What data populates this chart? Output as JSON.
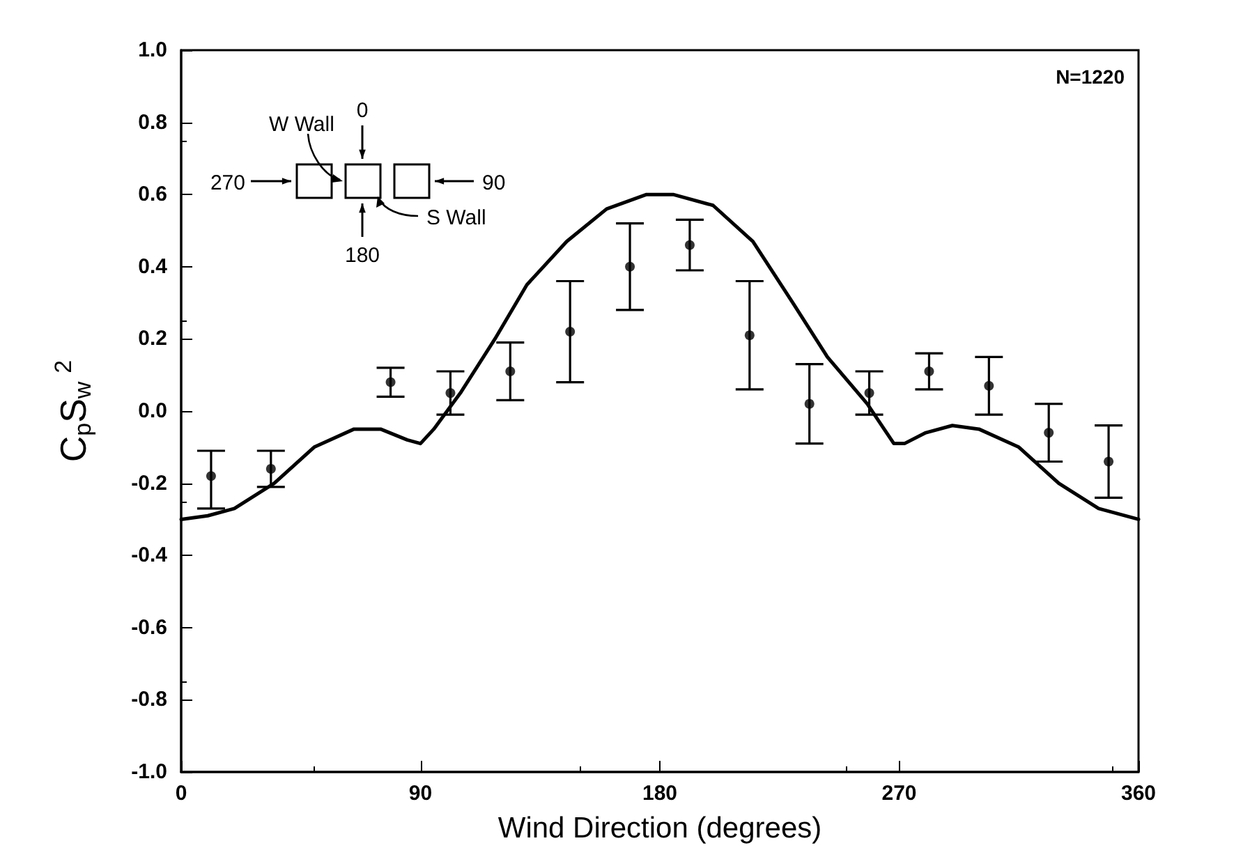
{
  "chart_data": {
    "type": "scatter",
    "xlabel": "Wind Direction (degrees)",
    "ylabel": "C$_{p}$S$_{w}$$^{2}$",
    "xlim": [
      0,
      360
    ],
    "xticks": [
      0,
      90,
      180,
      270,
      360
    ],
    "ylim": [
      -1.0,
      1.0
    ],
    "yticks": [
      {
        "value": -1.0,
        "label": "-1.0"
      },
      {
        "value": -0.8,
        "label": "-0.8"
      },
      {
        "value": -0.6,
        "label": "-0.6"
      },
      {
        "value": -0.4,
        "label": "-0.4"
      },
      {
        "value": -0.2,
        "label": "-0.2"
      },
      {
        "value": 0,
        "label": "0.0"
      },
      {
        "value": 0.2,
        "label": "0.2"
      },
      {
        "value": 0.4,
        "label": "0.4"
      },
      {
        "value": 0.6,
        "label": "0.6"
      },
      {
        "value": 0.8,
        "label": "0.8"
      },
      {
        "value": 1.0,
        "label": "1.0"
      }
    ],
    "grid": false,
    "annotations": [
      "N=1220",
      "W Wall",
      "0",
      "270",
      "90",
      "180",
      "S Wall"
    ],
    "series": [
      {
        "type": "line",
        "color": "#000000",
        "marker": "none",
        "line_style": "solid",
        "x": [
          0,
          10,
          20,
          35,
          50,
          65,
          75,
          85,
          90,
          95,
          105,
          118,
          130,
          145,
          160,
          175,
          185,
          200,
          215,
          230,
          243,
          258,
          268,
          272,
          280,
          290,
          300,
          315,
          330,
          345,
          360
        ],
        "values": [
          -0.3,
          -0.29,
          -0.27,
          -0.2,
          -0.1,
          -0.05,
          -0.05,
          -0.08,
          -0.09,
          -0.05,
          0.05,
          0.2,
          0.35,
          0.47,
          0.56,
          0.6,
          0.6,
          0.57,
          0.47,
          0.3,
          0.15,
          0.02,
          -0.09,
          -0.09,
          -0.06,
          -0.04,
          -0.05,
          -0.1,
          -0.2,
          -0.27,
          -0.3
        ]
      },
      {
        "color": "#000000",
        "marker": "circle",
        "x": [
          11.25,
          33.75,
          78.75,
          101.25,
          123.75,
          146.25,
          168.75,
          191.25,
          213.75,
          236.25,
          258.75,
          281.25,
          303.75,
          326.25,
          348.75
        ],
        "values": [
          -0.18,
          -0.16,
          0.08,
          0.05,
          0.11,
          0.22,
          0.4,
          0.46,
          0.21,
          0.02,
          0.05,
          0.11,
          0.07,
          -0.06,
          -0.14
        ],
        "errors": [
          [
            -0.27,
            -0.11
          ],
          [
            -0.21,
            -0.11
          ],
          [
            0.04,
            0.12
          ],
          [
            -0.01,
            0.11
          ],
          [
            0.03,
            0.19
          ],
          [
            0.08,
            0.36
          ],
          [
            0.28,
            0.52
          ],
          [
            0.39,
            0.53
          ],
          [
            0.06,
            0.36
          ],
          [
            -0.09,
            0.13
          ],
          [
            -0.01,
            0.11
          ],
          [
            0.06,
            0.16
          ],
          [
            -0.01,
            0.15
          ],
          [
            -0.14,
            0.02
          ],
          [
            -0.24,
            -0.04
          ]
        ]
      }
    ]
  }
}
